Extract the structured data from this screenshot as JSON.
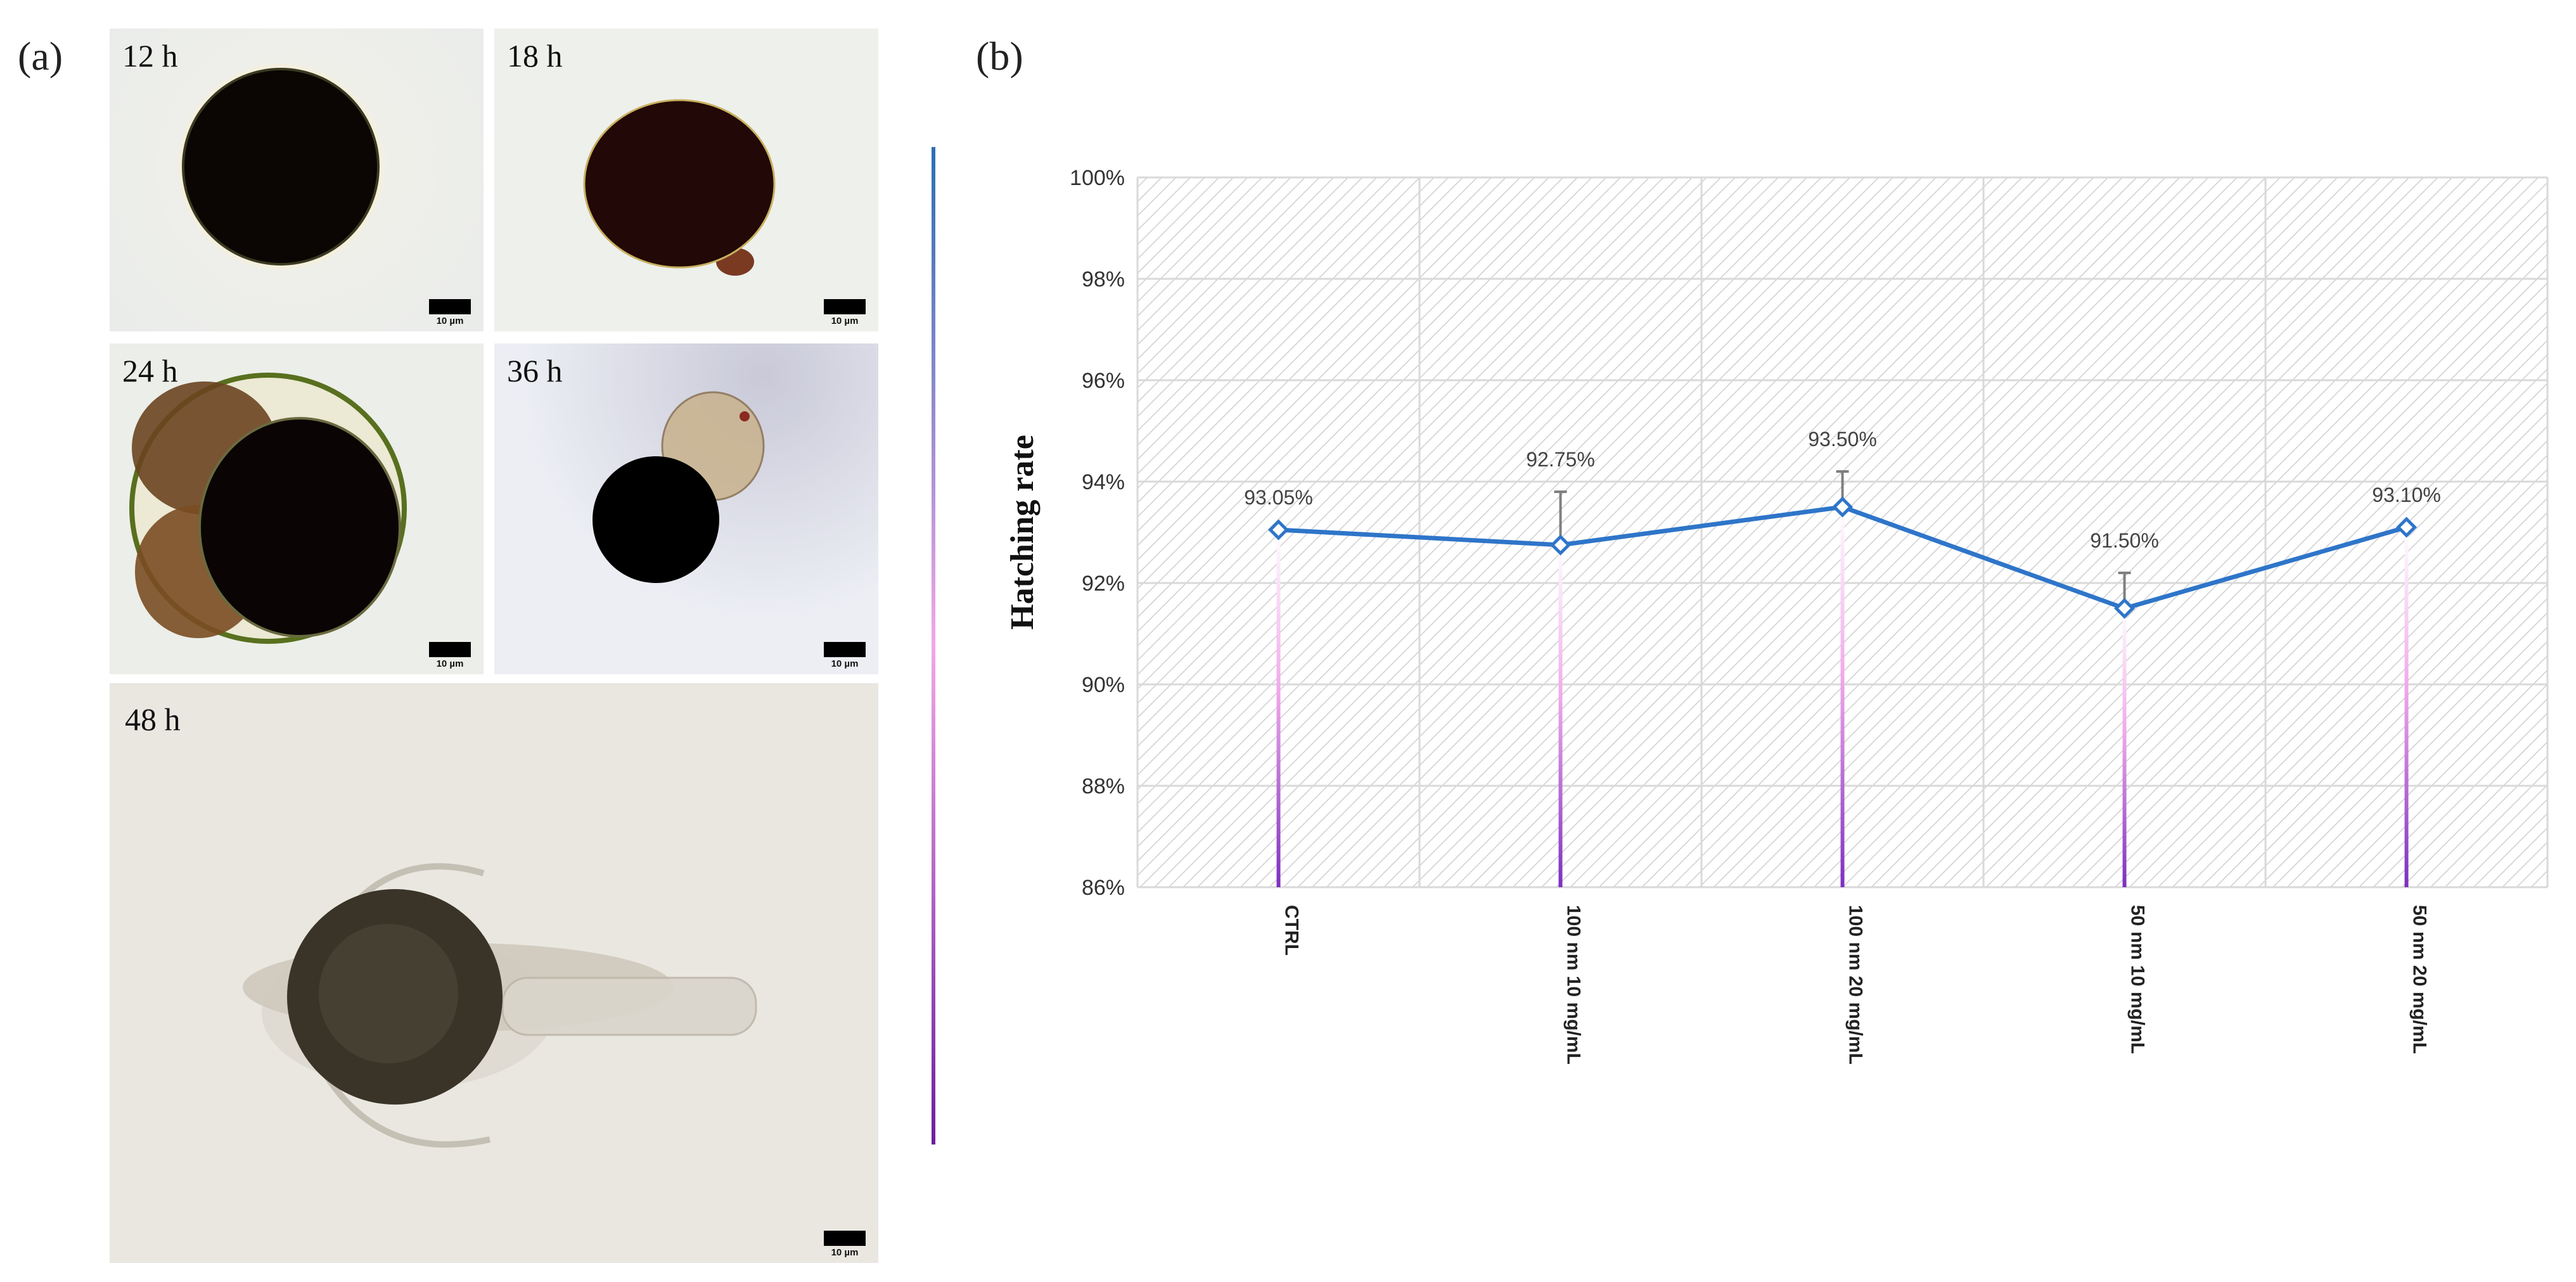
{
  "panels": {
    "a_label": "(a)",
    "b_label": "(b)"
  },
  "micrographs": [
    {
      "time": "12 h",
      "scale": "10 µm"
    },
    {
      "time": "18 h",
      "scale": "10 µm"
    },
    {
      "time": "24 h",
      "scale": "10 µm"
    },
    {
      "time": "36 h",
      "scale": "10 µm"
    },
    {
      "time": "48 h",
      "scale": "10 µm"
    }
  ],
  "chart_data": {
    "type": "line",
    "title": "",
    "ylabel": "Hatching rate",
    "xlabel": "",
    "categories": [
      "CTRL",
      "100 nm 10 mg/mL",
      "100 nm 20 mg/mL",
      "50 nm 10 mg/mL",
      "50 nm 20 mg/mL"
    ],
    "values": [
      93.05,
      92.75,
      93.5,
      91.5,
      93.1
    ],
    "error_plus": [
      0,
      1.05,
      0.7,
      0.7,
      0
    ],
    "data_labels": [
      "93.05%",
      "92.75%",
      "93.50%",
      "91.50%",
      "93.10%"
    ],
    "ylim": [
      86,
      100
    ],
    "yticks": [
      "86%",
      "88%",
      "90%",
      "92%",
      "94%",
      "96%",
      "98%",
      "100%"
    ],
    "grid": true,
    "colors": {
      "line": "#2e75c9",
      "drop": "#7b2fbf",
      "grid": "#d9d9d9",
      "hatch": "#cfcfcf"
    }
  }
}
